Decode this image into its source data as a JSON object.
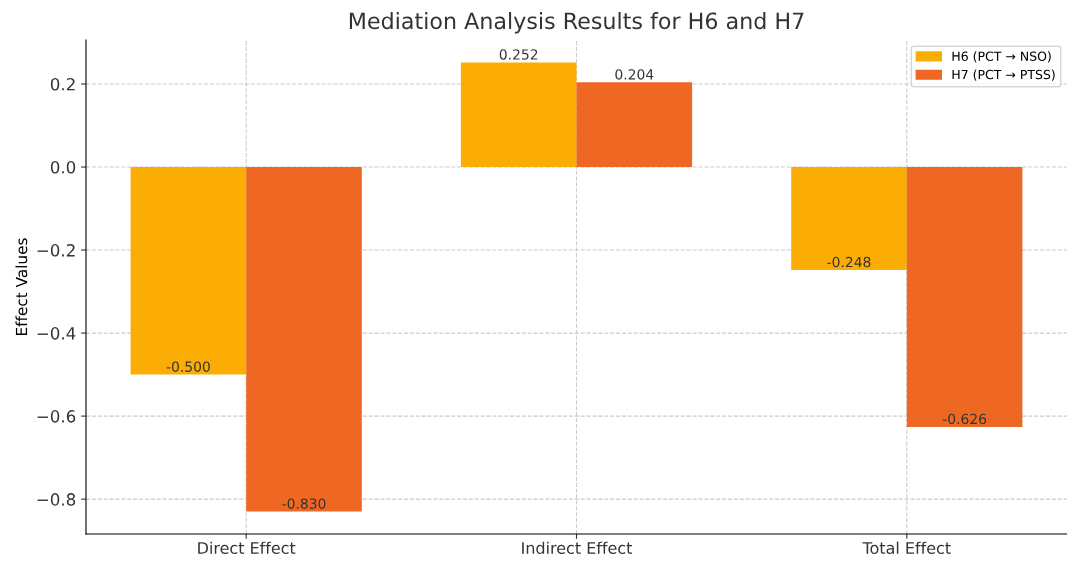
{
  "chart_data": {
    "type": "bar",
    "title": "Mediation Analysis Results for H6 and H7",
    "ylabel": "Effect Values",
    "categories": [
      "Direct Effect",
      "Indirect Effect",
      "Total Effect"
    ],
    "series": [
      {
        "name": "H6 (PCT → NSO)",
        "color": "#fbad05",
        "values": [
          -0.5,
          0.252,
          -0.248
        ],
        "value_labels": [
          "-0.500",
          "0.252",
          "-0.248"
        ]
      },
      {
        "name": "H7 (PCT → PTSS)",
        "color": "#ef6823",
        "values": [
          -0.83,
          0.204,
          -0.626
        ],
        "value_labels": [
          "-0.830",
          "0.204",
          "-0.626"
        ]
      }
    ],
    "ylim": [
      -0.884,
      0.306
    ],
    "yticks": [
      {
        "value": -0.8,
        "label": "−0.8"
      },
      {
        "value": -0.6,
        "label": "−0.6"
      },
      {
        "value": -0.4,
        "label": "−0.4"
      },
      {
        "value": -0.2,
        "label": "−0.2"
      },
      {
        "value": 0.0,
        "label": "0.0"
      },
      {
        "value": 0.2,
        "label": "0.2"
      }
    ],
    "grid": true,
    "legend": "top right"
  }
}
